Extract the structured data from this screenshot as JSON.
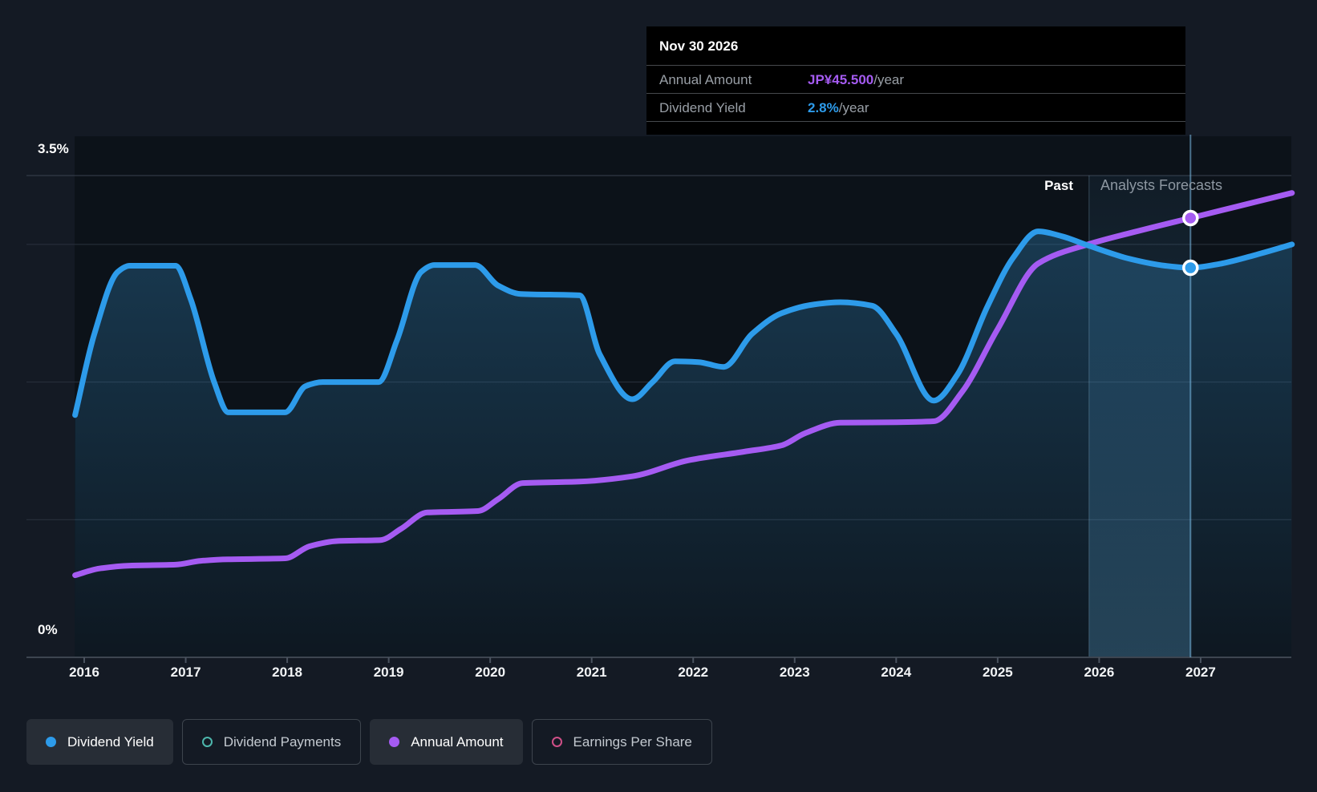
{
  "labels": {
    "past": "Past",
    "forecast": "Analysts Forecasts",
    "y_top": "3.5%",
    "y_bottom": "0%"
  },
  "tooltip": {
    "title": "Nov 30 2026",
    "rows": [
      {
        "label": "Annual Amount",
        "value": "JP¥45.500",
        "suffix": "/year",
        "color": "#a55bf2"
      },
      {
        "label": "Dividend Yield",
        "value": "2.8%",
        "suffix": "/year",
        "color": "#2d9bea"
      }
    ]
  },
  "x_axis": {
    "years": [
      "2016",
      "2017",
      "2018",
      "2019",
      "2020",
      "2021",
      "2022",
      "2023",
      "2024",
      "2025",
      "2026",
      "2027"
    ]
  },
  "legend": {
    "items": [
      {
        "label": "Dividend Yield",
        "marker": "dot",
        "color": "#2d9bea",
        "active": true
      },
      {
        "label": "Dividend Payments",
        "marker": "ring",
        "color": "#4db6ac",
        "active": false
      },
      {
        "label": "Annual Amount",
        "marker": "dot",
        "color": "#a55bf2",
        "active": true
      },
      {
        "label": "Earnings Per Share",
        "marker": "ring",
        "color": "#cf4f87",
        "active": false
      }
    ]
  },
  "chart_data": {
    "type": "line",
    "title": "Dividend yield and annual amount, past and analysts forecasts",
    "x_range_years": [
      2015.9,
      2027.9
    ],
    "y_axis": {
      "unit": "%",
      "min": 0,
      "max": 3.5,
      "gridlines_pct": [
        3.5,
        3,
        2,
        1
      ],
      "labeled_ticks": [
        "3.5%",
        "0%"
      ]
    },
    "forecast_start_year": 2025.9,
    "highlight": {
      "date": "Nov 30 2026",
      "year": 2026.9,
      "dividend_yield_pct": 2.8,
      "annual_amount_jpy": 45.5
    },
    "legend_position": "bottom",
    "series": [
      {
        "name": "Dividend Yield",
        "unit": "%",
        "color": "#2d9bea",
        "area": true,
        "points": [
          [
            2015.91,
            1.76
          ],
          [
            2016.1,
            2.35
          ],
          [
            2016.33,
            2.8
          ],
          [
            2016.45,
            2.845
          ],
          [
            2016.9,
            2.845
          ],
          [
            2017.05,
            2.6
          ],
          [
            2017.28,
            2.0
          ],
          [
            2017.42,
            1.78
          ],
          [
            2017.98,
            1.78
          ],
          [
            2018.18,
            1.97
          ],
          [
            2018.35,
            2.0
          ],
          [
            2018.9,
            2.0
          ],
          [
            2019.08,
            2.3
          ],
          [
            2019.32,
            2.8
          ],
          [
            2019.45,
            2.85
          ],
          [
            2019.85,
            2.85
          ],
          [
            2020.08,
            2.7
          ],
          [
            2020.3,
            2.64
          ],
          [
            2020.88,
            2.63
          ],
          [
            2021.08,
            2.2
          ],
          [
            2021.4,
            1.875
          ],
          [
            2021.6,
            2.0
          ],
          [
            2021.82,
            2.15
          ],
          [
            2022.05,
            2.145
          ],
          [
            2022.3,
            2.11
          ],
          [
            2022.58,
            2.35
          ],
          [
            2022.87,
            2.5
          ],
          [
            2023.2,
            2.565
          ],
          [
            2023.45,
            2.58
          ],
          [
            2023.76,
            2.555
          ],
          [
            2024.0,
            2.35
          ],
          [
            2024.37,
            1.865
          ],
          [
            2024.6,
            2.05
          ],
          [
            2024.9,
            2.55
          ],
          [
            2025.15,
            2.9
          ],
          [
            2025.4,
            3.095
          ],
          [
            2025.63,
            3.06
          ],
          [
            2025.9,
            2.99
          ],
          [
            2026.3,
            2.895
          ],
          [
            2026.65,
            2.845
          ],
          [
            2026.9,
            2.83
          ],
          [
            2027.2,
            2.86
          ],
          [
            2027.55,
            2.925
          ],
          [
            2027.9,
            3.0
          ]
        ]
      },
      {
        "name": "Annual Amount",
        "unit": "JP¥/year",
        "color": "#a55bf2",
        "area": false,
        "points": [
          [
            2015.91,
            8.5
          ],
          [
            2016.15,
            9.2
          ],
          [
            2016.45,
            9.5
          ],
          [
            2016.9,
            9.6
          ],
          [
            2017.15,
            10.0
          ],
          [
            2017.42,
            10.15
          ],
          [
            2017.98,
            10.25
          ],
          [
            2018.22,
            11.5
          ],
          [
            2018.5,
            12.05
          ],
          [
            2018.92,
            12.15
          ],
          [
            2019.12,
            13.3
          ],
          [
            2019.38,
            15.0
          ],
          [
            2019.88,
            15.15
          ],
          [
            2020.08,
            16.4
          ],
          [
            2020.32,
            18.05
          ],
          [
            2020.88,
            18.2
          ],
          [
            2021.4,
            18.75
          ],
          [
            2021.95,
            20.4
          ],
          [
            2022.5,
            21.3
          ],
          [
            2022.87,
            21.95
          ],
          [
            2023.1,
            23.2
          ],
          [
            2023.45,
            24.3
          ],
          [
            2024.0,
            24.35
          ],
          [
            2024.37,
            24.45
          ],
          [
            2024.65,
            27.5
          ],
          [
            2025.0,
            34.0
          ],
          [
            2025.4,
            40.8
          ],
          [
            2025.9,
            42.8
          ],
          [
            2026.4,
            44.2
          ],
          [
            2026.9,
            45.5
          ],
          [
            2027.4,
            46.8
          ],
          [
            2027.9,
            48.1
          ]
        ]
      }
    ],
    "colors": {
      "dividend_yield": "#2d9bea",
      "annual_amount": "#a55bf2",
      "dividend_payments": "#4db6ac",
      "earnings_per_share": "#cf4f87",
      "background": "#141a24",
      "plot_background": "#0c1219",
      "tooltip_background": "#000000"
    }
  }
}
